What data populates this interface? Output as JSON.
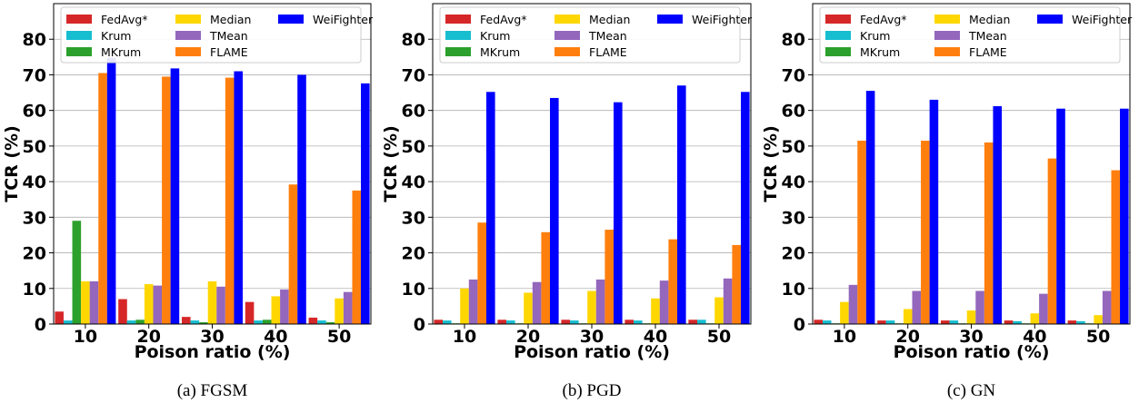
{
  "chart_data": [
    {
      "type": "bar",
      "caption": "(a) FGSM",
      "xlabel": "Poison ratio (%)",
      "ylabel": "TCR (%)",
      "categories": [
        "10",
        "20",
        "30",
        "40",
        "50"
      ],
      "yticks": [
        0,
        10,
        20,
        30,
        40,
        50,
        60,
        70,
        80
      ],
      "ylim": [
        0,
        90
      ],
      "grid": "horizontal",
      "legend_position": "top",
      "series": [
        {
          "name": "FedAvg*",
          "color": "#d62728",
          "values": [
            3.5,
            7.0,
            2.0,
            6.2,
            1.8
          ]
        },
        {
          "name": "Krum",
          "color": "#17becf",
          "values": [
            1.0,
            1.0,
            1.0,
            1.0,
            1.0
          ]
        },
        {
          "name": "MKrum",
          "color": "#2ca02c",
          "values": [
            29.0,
            1.2,
            0.5,
            1.2,
            0.5
          ]
        },
        {
          "name": "Median",
          "color": "#ffd700",
          "values": [
            12.0,
            11.2,
            12.0,
            7.8,
            7.2
          ]
        },
        {
          "name": "TMean",
          "color": "#9467bd",
          "values": [
            12.0,
            10.8,
            10.5,
            9.7,
            9.0
          ]
        },
        {
          "name": "FLAME",
          "color": "#ff7f0e",
          "values": [
            70.5,
            69.5,
            69.2,
            39.2,
            37.5
          ]
        },
        {
          "name": "WeiFighter",
          "color": "#0000ff",
          "values": [
            74.8,
            71.8,
            71.0,
            70.0,
            67.6
          ]
        }
      ]
    },
    {
      "type": "bar",
      "caption": "(b) PGD",
      "xlabel": "Poison ratio (%)",
      "ylabel": "TCR (%)",
      "categories": [
        "10",
        "20",
        "30",
        "40",
        "50"
      ],
      "yticks": [
        0,
        10,
        20,
        30,
        40,
        50,
        60,
        70,
        80
      ],
      "ylim": [
        0,
        90
      ],
      "grid": "horizontal",
      "legend_position": "top",
      "series": [
        {
          "name": "FedAvg*",
          "color": "#d62728",
          "values": [
            1.2,
            1.2,
            1.2,
            1.2,
            1.2
          ]
        },
        {
          "name": "Krum",
          "color": "#17becf",
          "values": [
            1.0,
            1.0,
            1.0,
            1.0,
            1.2
          ]
        },
        {
          "name": "MKrum",
          "color": "#2ca02c",
          "values": [
            0.2,
            0.2,
            0.2,
            0.2,
            0.2
          ]
        },
        {
          "name": "Median",
          "color": "#ffd700",
          "values": [
            10.0,
            8.8,
            9.3,
            7.2,
            7.5
          ]
        },
        {
          "name": "TMean",
          "color": "#9467bd",
          "values": [
            12.5,
            11.8,
            12.5,
            12.2,
            12.8
          ]
        },
        {
          "name": "FLAME",
          "color": "#ff7f0e",
          "values": [
            28.5,
            25.8,
            26.5,
            23.8,
            22.2
          ]
        },
        {
          "name": "WeiFighter",
          "color": "#0000ff",
          "values": [
            65.2,
            63.5,
            62.3,
            67.0,
            65.2
          ]
        }
      ]
    },
    {
      "type": "bar",
      "caption": "(c) GN",
      "xlabel": "Poison ratio (%)",
      "ylabel": "TCR (%)",
      "categories": [
        "10",
        "20",
        "30",
        "40",
        "50"
      ],
      "yticks": [
        0,
        10,
        20,
        30,
        40,
        50,
        60,
        70,
        80
      ],
      "ylim": [
        0,
        90
      ],
      "grid": "horizontal",
      "legend_position": "top",
      "series": [
        {
          "name": "FedAvg*",
          "color": "#d62728",
          "values": [
            1.2,
            1.0,
            1.0,
            1.0,
            1.0
          ]
        },
        {
          "name": "Krum",
          "color": "#17becf",
          "values": [
            1.0,
            1.0,
            1.0,
            0.8,
            0.8
          ]
        },
        {
          "name": "MKrum",
          "color": "#2ca02c",
          "values": [
            0.2,
            0.2,
            0.2,
            0.2,
            0.2
          ]
        },
        {
          "name": "Median",
          "color": "#ffd700",
          "values": [
            6.2,
            4.2,
            3.8,
            3.0,
            2.5
          ]
        },
        {
          "name": "TMean",
          "color": "#9467bd",
          "values": [
            11.0,
            9.3,
            9.3,
            8.5,
            9.3
          ]
        },
        {
          "name": "FLAME",
          "color": "#ff7f0e",
          "values": [
            51.5,
            51.5,
            51.0,
            46.5,
            43.2
          ]
        },
        {
          "name": "WeiFighter",
          "color": "#0000ff",
          "values": [
            65.5,
            63.0,
            61.2,
            60.5,
            60.5
          ]
        }
      ]
    }
  ]
}
